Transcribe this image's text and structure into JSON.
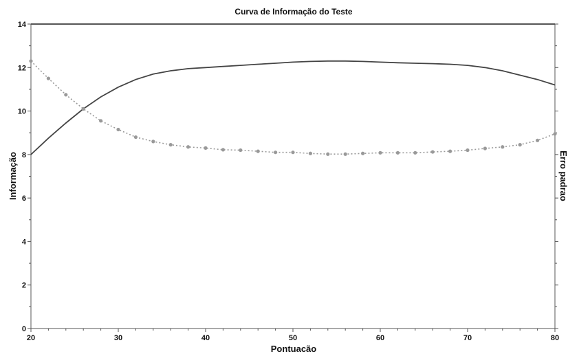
{
  "chart_data": {
    "type": "line",
    "title": "Curva de Informação do Teste",
    "xlabel": "Pontuacão",
    "ylabel": "Informação",
    "y2label": "Erro padrao",
    "xlim": [
      20,
      80
    ],
    "ylim": [
      0,
      14
    ],
    "xticks": [
      20,
      30,
      40,
      50,
      60,
      70,
      80
    ],
    "yticks": [
      0,
      2,
      4,
      6,
      8,
      10,
      12,
      14
    ],
    "grid": false,
    "series": [
      {
        "style": "solid",
        "color": "#444444",
        "x": [
          20,
          22,
          24,
          26,
          28,
          30,
          32,
          34,
          36,
          38,
          40,
          42,
          44,
          46,
          48,
          50,
          52,
          54,
          56,
          58,
          60,
          62,
          64,
          66,
          68,
          70,
          72,
          74,
          76,
          78,
          80
        ],
        "y": [
          8.0,
          8.75,
          9.45,
          10.1,
          10.65,
          11.1,
          11.45,
          11.7,
          11.85,
          11.95,
          12.0,
          12.05,
          12.1,
          12.15,
          12.2,
          12.25,
          12.28,
          12.3,
          12.3,
          12.28,
          12.25,
          12.22,
          12.2,
          12.18,
          12.15,
          12.1,
          12.0,
          11.85,
          11.65,
          11.45,
          11.2
        ]
      },
      {
        "style": "dotted-markers",
        "color": "#999999",
        "x": [
          20,
          22,
          24,
          26,
          28,
          30,
          32,
          34,
          36,
          38,
          40,
          42,
          44,
          46,
          48,
          50,
          52,
          54,
          56,
          58,
          60,
          62,
          64,
          66,
          68,
          70,
          72,
          74,
          76,
          78,
          80
        ],
        "y": [
          12.3,
          11.5,
          10.75,
          10.1,
          9.55,
          9.15,
          8.8,
          8.6,
          8.45,
          8.35,
          8.3,
          8.22,
          8.2,
          8.15,
          8.1,
          8.1,
          8.05,
          8.02,
          8.02,
          8.05,
          8.08,
          8.08,
          8.08,
          8.12,
          8.15,
          8.2,
          8.28,
          8.35,
          8.45,
          8.65,
          8.95
        ]
      }
    ]
  }
}
